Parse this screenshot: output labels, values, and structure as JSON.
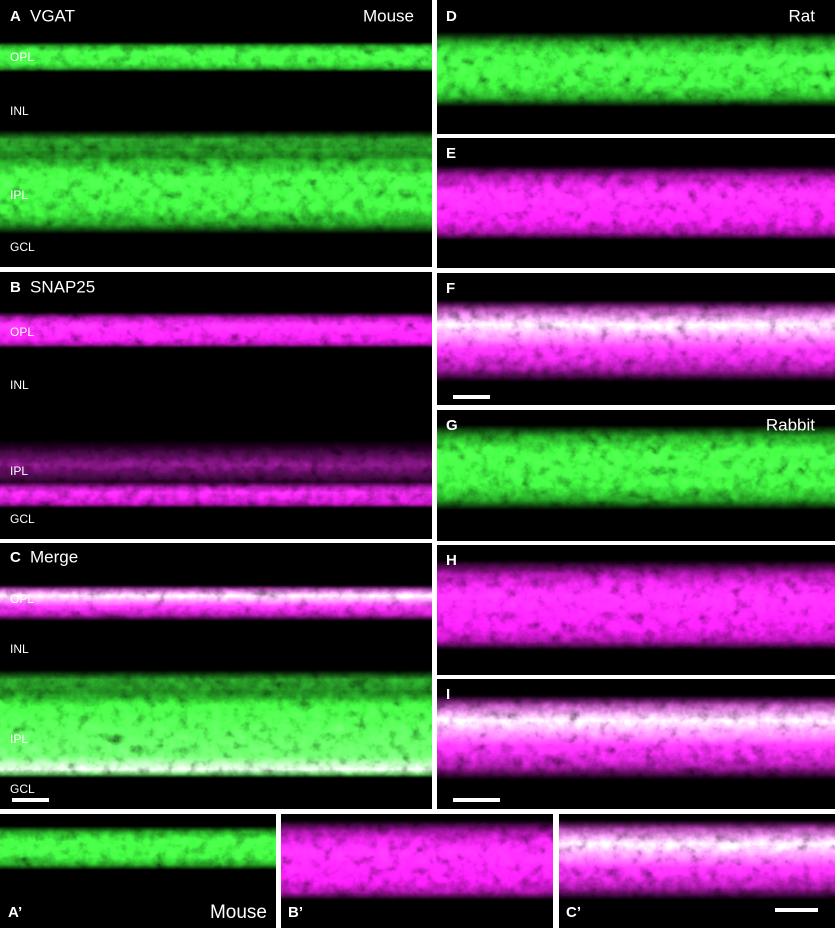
{
  "panels": [
    {
      "letter": "A",
      "marker": "VGAT",
      "species": "Mouse",
      "layers": [
        "OPL",
        "INL",
        "IPL",
        "GCL"
      ]
    },
    {
      "letter": "B",
      "marker": "SNAP25",
      "layers": [
        "OPL",
        "INL",
        "IPL",
        "GCL"
      ]
    },
    {
      "letter": "C",
      "marker": "Merge",
      "layers": [
        "OPL",
        "INL",
        "IPL",
        "GCL"
      ]
    },
    {
      "letter": "D",
      "species": "Rat"
    },
    {
      "letter": "E"
    },
    {
      "letter": "F"
    },
    {
      "letter": "G",
      "species": "Rabbit"
    },
    {
      "letter": "H"
    },
    {
      "letter": "I"
    },
    {
      "letter": "A’",
      "species": "Mouse"
    },
    {
      "letter": "B’"
    },
    {
      "letter": "C’"
    }
  ]
}
